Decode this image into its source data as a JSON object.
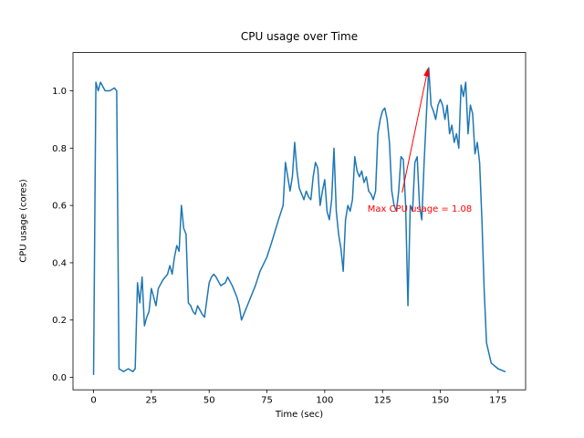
{
  "chart_data": {
    "type": "line",
    "title": "CPU usage over Time",
    "xlabel": "Time (sec)",
    "ylabel": "CPU usage (cores)",
    "xlim": [
      -8.9,
      186.9
    ],
    "ylim": [
      -0.0435,
      1.1335
    ],
    "xticks": [
      0,
      25,
      50,
      75,
      100,
      125,
      150,
      175
    ],
    "xtick_labels": [
      "0",
      "25",
      "50",
      "75",
      "100",
      "125",
      "150",
      "175"
    ],
    "yticks": [
      0.0,
      0.2,
      0.4,
      0.6,
      0.8,
      1.0
    ],
    "ytick_labels": [
      "0.0",
      "0.2",
      "0.4",
      "0.6",
      "0.8",
      "1.0"
    ],
    "grid": false,
    "legend": false,
    "line_color": "#1f77b4",
    "line_width": 1.5,
    "x": [
      0,
      1,
      2,
      3,
      5,
      7,
      9,
      10,
      11,
      13,
      15,
      17,
      18,
      19,
      20,
      21,
      22,
      23,
      24,
      25,
      26,
      27,
      28,
      30,
      32,
      33,
      34,
      35,
      36,
      37,
      38,
      39,
      40,
      41,
      42,
      43,
      44,
      45,
      47,
      48,
      50,
      51,
      52,
      53,
      55,
      57,
      58,
      60,
      62,
      63,
      64,
      65,
      67,
      70,
      72,
      75,
      77,
      80,
      82,
      83,
      84,
      85,
      86,
      87,
      88,
      89,
      90,
      91,
      92,
      93,
      94,
      95,
      96,
      97,
      98,
      99,
      100,
      101,
      102,
      103,
      104,
      105,
      106,
      107,
      108,
      109,
      110,
      111,
      112,
      113,
      114,
      115,
      116,
      117,
      118,
      119,
      120,
      121,
      122,
      123,
      124,
      125,
      126,
      127,
      128,
      129,
      130,
      131,
      132,
      133,
      134,
      135,
      136,
      137,
      138,
      139,
      140,
      141,
      142,
      143,
      144,
      145,
      146,
      147,
      148,
      149,
      150,
      151,
      152,
      153,
      154,
      155,
      156,
      157,
      158,
      159,
      160,
      161,
      162,
      163,
      164,
      165,
      166,
      167,
      168,
      169,
      170,
      172,
      175,
      178
    ],
    "y": [
      0.01,
      1.03,
      1.0,
      1.03,
      1.0,
      1.0,
      1.01,
      1.0,
      0.03,
      0.02,
      0.03,
      0.02,
      0.03,
      0.33,
      0.26,
      0.35,
      0.18,
      0.21,
      0.23,
      0.31,
      0.28,
      0.25,
      0.31,
      0.34,
      0.36,
      0.39,
      0.36,
      0.42,
      0.46,
      0.44,
      0.6,
      0.52,
      0.5,
      0.26,
      0.25,
      0.23,
      0.22,
      0.25,
      0.22,
      0.21,
      0.33,
      0.35,
      0.36,
      0.35,
      0.32,
      0.33,
      0.35,
      0.32,
      0.28,
      0.25,
      0.2,
      0.22,
      0.26,
      0.32,
      0.37,
      0.42,
      0.47,
      0.55,
      0.6,
      0.75,
      0.7,
      0.65,
      0.7,
      0.82,
      0.72,
      0.66,
      0.64,
      0.62,
      0.65,
      0.63,
      0.62,
      0.7,
      0.75,
      0.73,
      0.6,
      0.65,
      0.69,
      0.58,
      0.55,
      0.62,
      0.8,
      0.58,
      0.5,
      0.45,
      0.37,
      0.55,
      0.6,
      0.58,
      0.62,
      0.77,
      0.72,
      0.7,
      0.72,
      0.68,
      0.7,
      0.65,
      0.64,
      0.62,
      0.65,
      0.85,
      0.9,
      0.93,
      0.94,
      0.9,
      0.82,
      0.65,
      0.6,
      0.58,
      0.65,
      0.77,
      0.76,
      0.6,
      0.25,
      0.6,
      0.58,
      0.75,
      0.77,
      0.6,
      0.55,
      0.75,
      0.92,
      1.08,
      0.95,
      0.93,
      0.9,
      0.95,
      0.97,
      0.95,
      0.9,
      0.95,
      0.85,
      0.88,
      0.82,
      0.85,
      0.8,
      1.02,
      0.98,
      1.03,
      0.85,
      0.95,
      0.92,
      0.78,
      0.82,
      0.75,
      0.55,
      0.3,
      0.12,
      0.05,
      0.03,
      0.02
    ],
    "annotation": {
      "text": "Max CPU usage = 1.08",
      "color": "#ff0000",
      "text_x": 118.5,
      "text_y": 0.565,
      "arrow_x1": 133.5,
      "arrow_y1": 0.645,
      "arrow_x2": 144.8,
      "arrow_y2": 1.082
    }
  }
}
